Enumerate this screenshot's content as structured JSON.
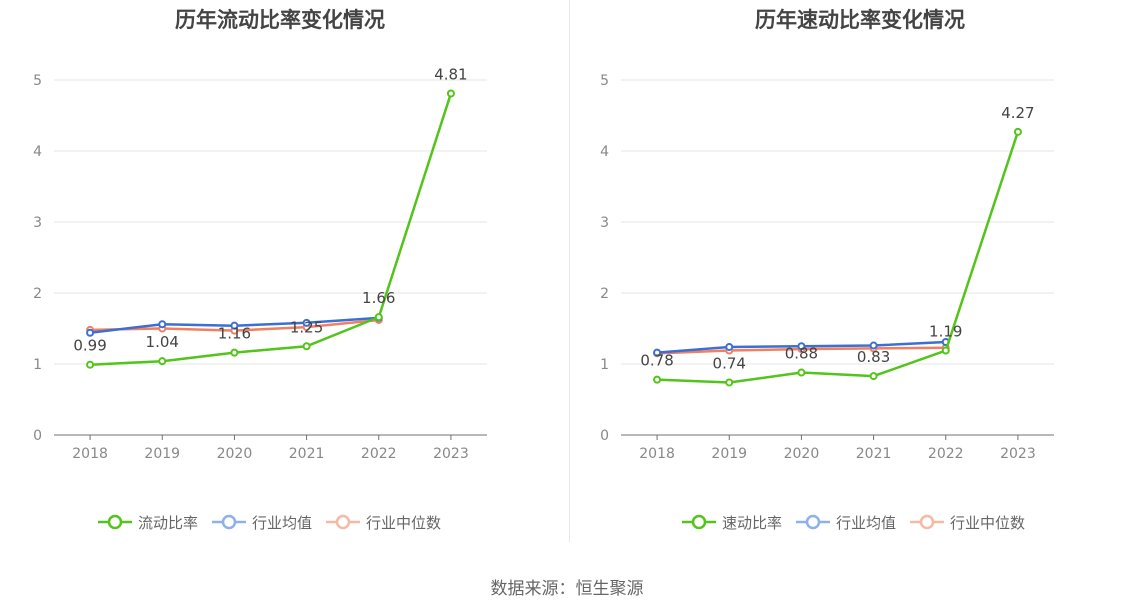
{
  "chart_data": [
    {
      "type": "line",
      "title": "历年流动比率变化情况",
      "categories": [
        "2018",
        "2019",
        "2020",
        "2021",
        "2022",
        "2023"
      ],
      "y_ticks": [
        "0",
        "1",
        "2",
        "3",
        "4",
        "5"
      ],
      "ylim": [
        0,
        5
      ],
      "grid": true,
      "legend_position": "bottom",
      "series": [
        {
          "name": "流动比率",
          "color": "#52c41a",
          "values": [
            0.99,
            1.04,
            1.16,
            1.25,
            1.66,
            4.81
          ],
          "labels": [
            "0.99",
            "1.04",
            "1.16",
            "1.25",
            "1.66",
            "4.81"
          ]
        },
        {
          "name": "行业均值",
          "color": "#3b6fd4",
          "legend_color": "#8fb1eb",
          "values": [
            1.44,
            1.56,
            1.54,
            1.58,
            1.65,
            null
          ]
        },
        {
          "name": "行业中位数",
          "color": "#f08060",
          "legend_color": "#f6b9a4",
          "values": [
            1.48,
            1.5,
            1.47,
            1.52,
            1.62,
            null
          ]
        }
      ]
    },
    {
      "type": "line",
      "title": "历年速动比率变化情况",
      "categories": [
        "2018",
        "2019",
        "2020",
        "2021",
        "2022",
        "2023"
      ],
      "y_ticks": [
        "0",
        "1",
        "2",
        "3",
        "4",
        "5"
      ],
      "ylim": [
        0,
        5
      ],
      "grid": true,
      "legend_position": "bottom",
      "series": [
        {
          "name": "速动比率",
          "color": "#52c41a",
          "values": [
            0.78,
            0.74,
            0.88,
            0.83,
            1.19,
            4.27
          ],
          "labels": [
            "0.78",
            "0.74",
            "0.88",
            "0.83",
            "1.19",
            "4.27"
          ]
        },
        {
          "name": "行业均值",
          "color": "#3b6fd4",
          "legend_color": "#8fb1eb",
          "values": [
            1.16,
            1.24,
            1.25,
            1.26,
            1.31,
            null
          ]
        },
        {
          "name": "行业中位数",
          "color": "#f08060",
          "legend_color": "#f6b9a4",
          "values": [
            1.15,
            1.19,
            1.21,
            1.22,
            1.23,
            null
          ]
        }
      ]
    }
  ],
  "source": "数据来源：恒生聚源"
}
